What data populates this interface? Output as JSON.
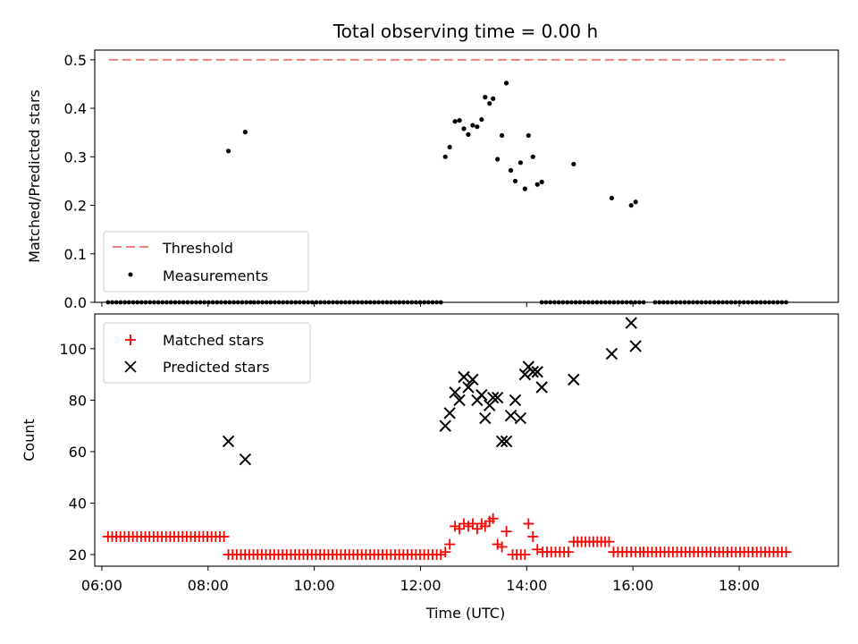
{
  "chart_data": [
    {
      "type": "scatter",
      "title": "Total observing time = 0.00 h",
      "xlabel": "",
      "ylabel": "Matched/Predicted stars",
      "xlim": [
        "05:52",
        "19:52"
      ],
      "ylim": [
        0,
        0.52
      ],
      "yticks": [
        "0.0",
        "0.1",
        "0.2",
        "0.3",
        "0.4",
        "0.5"
      ],
      "xticks_labels_shown": false,
      "legend": {
        "placement": "lower-left",
        "entries": [
          "Threshold",
          "Measurements"
        ]
      },
      "colors": {
        "threshold": "#f08080",
        "measurements": "#000000"
      },
      "threshold": {
        "name": "Threshold",
        "value": 0.5,
        "x_range": [
          "06:08",
          "18:52"
        ]
      },
      "series": [
        {
          "name": "Measurements",
          "zero_runs": [
            [
              "06:07",
              "08:48"
            ],
            [
              "08:52",
              "12:23"
            ],
            [
              "14:17",
              "16:12"
            ],
            [
              "16:25",
              "18:53"
            ]
          ],
          "points": [
            [
              "08:23",
              0.312
            ],
            [
              "08:42",
              0.351
            ],
            [
              "12:28",
              0.3
            ],
            [
              "12:33",
              0.32
            ],
            [
              "12:39",
              0.373
            ],
            [
              "12:44",
              0.375
            ],
            [
              "12:49",
              0.358
            ],
            [
              "12:54",
              0.346
            ],
            [
              "12:59",
              0.365
            ],
            [
              "13:04",
              0.362
            ],
            [
              "13:09",
              0.377
            ],
            [
              "13:13",
              0.423
            ],
            [
              "13:18",
              0.41
            ],
            [
              "13:22",
              0.42
            ],
            [
              "13:27",
              0.295
            ],
            [
              "13:32",
              0.344
            ],
            [
              "13:37",
              0.452
            ],
            [
              "13:42",
              0.272
            ],
            [
              "13:47",
              0.25
            ],
            [
              "13:53",
              0.288
            ],
            [
              "13:58",
              0.234
            ],
            [
              "14:02",
              0.344
            ],
            [
              "14:07",
              0.3
            ],
            [
              "14:12",
              0.243
            ],
            [
              "14:17",
              0.248
            ],
            [
              "14:53",
              0.285
            ],
            [
              "15:36",
              0.215
            ],
            [
              "15:58",
              0.2
            ],
            [
              "16:03",
              0.207
            ]
          ]
        }
      ]
    },
    {
      "type": "scatter",
      "title": "",
      "xlabel": "Time (UTC)",
      "ylabel": "Count",
      "xlim": [
        "05:52",
        "19:52"
      ],
      "ylim": [
        15.5,
        113.5
      ],
      "xticks": [
        "06:00",
        "08:00",
        "10:00",
        "12:00",
        "14:00",
        "16:00",
        "18:00"
      ],
      "yticks": [
        "20",
        "40",
        "60",
        "80",
        "100"
      ],
      "legend": {
        "placement": "upper-left",
        "entries": [
          "Matched stars",
          "Predicted stars"
        ]
      },
      "colors": {
        "matched": "#ff0000",
        "predicted": "#000000"
      },
      "series": [
        {
          "name": "Matched stars",
          "runs": [
            {
              "from": "06:07",
              "to": "08:18",
              "value": 27
            },
            {
              "from": "08:23",
              "to": "12:23",
              "value": 20
            },
            {
              "from": "13:44",
              "to": "13:58",
              "value": 20
            },
            {
              "from": "14:18",
              "to": "14:47",
              "value": 21
            },
            {
              "from": "14:53",
              "to": "15:33",
              "value": 25
            },
            {
              "from": "15:38",
              "to": "16:08",
              "value": 21
            },
            {
              "from": "16:12",
              "to": "18:53",
              "value": 21
            }
          ],
          "points": [
            [
              "12:28",
              21
            ],
            [
              "12:33",
              24
            ],
            [
              "12:39",
              31
            ],
            [
              "12:44",
              30
            ],
            [
              "12:49",
              32
            ],
            [
              "12:54",
              31
            ],
            [
              "12:59",
              32
            ],
            [
              "13:04",
              30
            ],
            [
              "13:09",
              32
            ],
            [
              "13:13",
              31
            ],
            [
              "13:18",
              33
            ],
            [
              "13:22",
              34
            ],
            [
              "13:27",
              24
            ],
            [
              "13:32",
              23
            ],
            [
              "13:37",
              29
            ],
            [
              "14:02",
              32
            ],
            [
              "14:07",
              27
            ],
            [
              "14:12",
              22
            ]
          ]
        },
        {
          "name": "Predicted stars",
          "points": [
            [
              "08:23",
              64
            ],
            [
              "08:42",
              57
            ],
            [
              "12:28",
              70
            ],
            [
              "12:33",
              75
            ],
            [
              "12:39",
              83
            ],
            [
              "12:44",
              80
            ],
            [
              "12:49",
              89
            ],
            [
              "12:54",
              85
            ],
            [
              "12:59",
              88
            ],
            [
              "13:04",
              80
            ],
            [
              "13:09",
              82
            ],
            [
              "13:13",
              73
            ],
            [
              "13:18",
              78
            ],
            [
              "13:22",
              81
            ],
            [
              "13:27",
              81
            ],
            [
              "13:32",
              64
            ],
            [
              "13:37",
              64
            ],
            [
              "13:42",
              74
            ],
            [
              "13:47",
              80
            ],
            [
              "13:53",
              73
            ],
            [
              "13:58",
              90
            ],
            [
              "14:02",
              93
            ],
            [
              "14:07",
              91
            ],
            [
              "14:12",
              91
            ],
            [
              "14:17",
              85
            ],
            [
              "14:53",
              88
            ],
            [
              "15:36",
              98
            ],
            [
              "15:58",
              110
            ],
            [
              "16:03",
              101
            ]
          ]
        }
      ]
    }
  ]
}
